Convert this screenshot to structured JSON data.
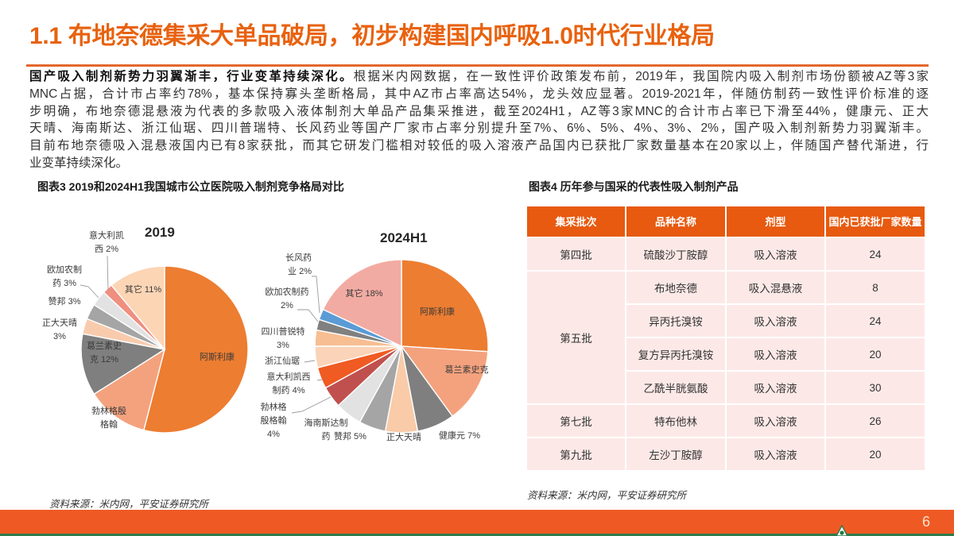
{
  "header": {
    "title": "1.1 布地奈德集采大单品破局，初步构建国内呼吸1.0时代行业格局"
  },
  "body": {
    "lead": "国产吸入制剂新势力羽翼渐丰，行业变革持续深化。",
    "lines": [
      "根据米内网数据，在一致性评价政策发布前，2019年，我国院内吸入制剂市场份额被AZ等3家",
      "MNC占据，合计市占率约78%，基本保持寡头垄断格局，其中AZ市占率高达54%，龙头效应显著。2019-2021年，伴随仿制药一致性评价标准的逐",
      "步明确，布地奈德混悬液为代表的多款吸入液体制剂大单品产品集采推进，截至2024H1，AZ等3家MNC的合计市占率已下滑至44%，健康元、正大",
      "天晴、海南斯达、浙江仙琚、四川普瑞特、长风药业等国产厂家市占率分别提升至7%、6%、5%、4%、3%、2%，国产吸入制剂新势力羽翼渐丰。",
      "目前布地奈德吸入混悬液国内已有8家获批，而其它研发门槛相对较低的吸入溶液产品国内已获批厂家数量基本在20家以上，伴随国产替代渐进，行",
      "业变革持续深化。"
    ]
  },
  "figure3": {
    "title": "图表3 2019和2024H1我国城市公立医院吸入制剂竞争格局对比",
    "source": "资料来源：米内网，平安证券研究所"
  },
  "figure4": {
    "title": "图表4 历年参与国采的代表性吸入制剂产品",
    "source": "资料来源：米内网，平安证券研究所",
    "headers": [
      "集采批次",
      "品种名称",
      "剂型",
      "国内已获批厂家数量"
    ],
    "rows": [
      {
        "batch": "第四批",
        "name": "硫酸沙丁胺醇",
        "form": "吸入溶液",
        "count": "24"
      },
      {
        "batch": "第五批",
        "name": "布地奈德",
        "form": "吸入混悬液",
        "count": "8"
      },
      {
        "batch": "",
        "name": "异丙托溴铵",
        "form": "吸入溶液",
        "count": "24"
      },
      {
        "batch": "",
        "name": "复方异丙托溴铵",
        "form": "吸入溶液",
        "count": "20"
      },
      {
        "batch": "",
        "name": "乙酰半胱氨酸",
        "form": "吸入溶液",
        "count": "30"
      },
      {
        "batch": "第七批",
        "name": "特布他林",
        "form": "吸入溶液",
        "count": "26"
      },
      {
        "batch": "第九批",
        "name": "左沙丁胺醇",
        "form": "吸入溶液",
        "count": "20"
      }
    ]
  },
  "chart_data": [
    {
      "type": "pie",
      "title": "2019",
      "categories": [
        "阿斯利康",
        "勃林格殷格翰",
        "葛兰素史克",
        "正大天晴",
        "赞邦",
        "欧加农制药",
        "意大利凯西",
        "其它"
      ],
      "values": [
        54,
        12,
        12,
        3,
        3,
        3,
        2,
        11
      ],
      "unit": "%",
      "colors": [
        "#ED7D31",
        "#F4A27E",
        "#7F7F7F",
        "#F8CBAD",
        "#A5A5A5",
        "#E2E2E2",
        "#EF8F80",
        "#FCD5B5"
      ],
      "labels": [
        "阿斯利康",
        "勃林格殷\n格翰",
        "葛兰素史\n克 12%",
        "正大天晴\n3%",
        "赞邦 3%",
        "欧加农制\n药 3%",
        "意大利凯\n西 2%",
        "其它 11%"
      ],
      "start_angle": "12 o'clock, clockwise"
    },
    {
      "type": "pie",
      "title": "2024H1",
      "categories": [
        "阿斯利康",
        "葛兰素史克",
        "健康元",
        "正大天晴",
        "赞邦",
        "海南斯达制药",
        "勃林格殷格翰",
        "意大利凯西制药",
        "浙江仙琚",
        "四川普锐特",
        "欧加农制药",
        "长风药业",
        "其它"
      ],
      "values": [
        26,
        14,
        7,
        6,
        5,
        5,
        4,
        4,
        4,
        3,
        2,
        2,
        18
      ],
      "unit": "%",
      "colors": [
        "#ED7D31",
        "#F4A27E",
        "#7F7F7F",
        "#F9CBA9",
        "#A5A5A5",
        "#E2E2E2",
        "#C0504D",
        "#EF5B22",
        "#FAD3B8",
        "#F7BE92",
        "#808080",
        "#5B9BD5",
        "#F2ABA2"
      ],
      "labels": [
        "阿斯利康",
        "葛兰素史克",
        "健康元 7%",
        "正大天晴",
        "赞邦 5%",
        "海南斯达制\n药",
        "勃林格\n殷格翰\n4%",
        "意大利凯西\n制药 4%",
        "浙江仙琚",
        "四川普锐特\n3%",
        "欧加农制药\n2%",
        "长风药\n业 2%",
        "其它 18%"
      ],
      "start_angle": "12 o'clock, clockwise"
    }
  ],
  "footer": {
    "page_number": "6",
    "brand_color": "#EF5A24",
    "accent_color": "#2F7A4A"
  }
}
